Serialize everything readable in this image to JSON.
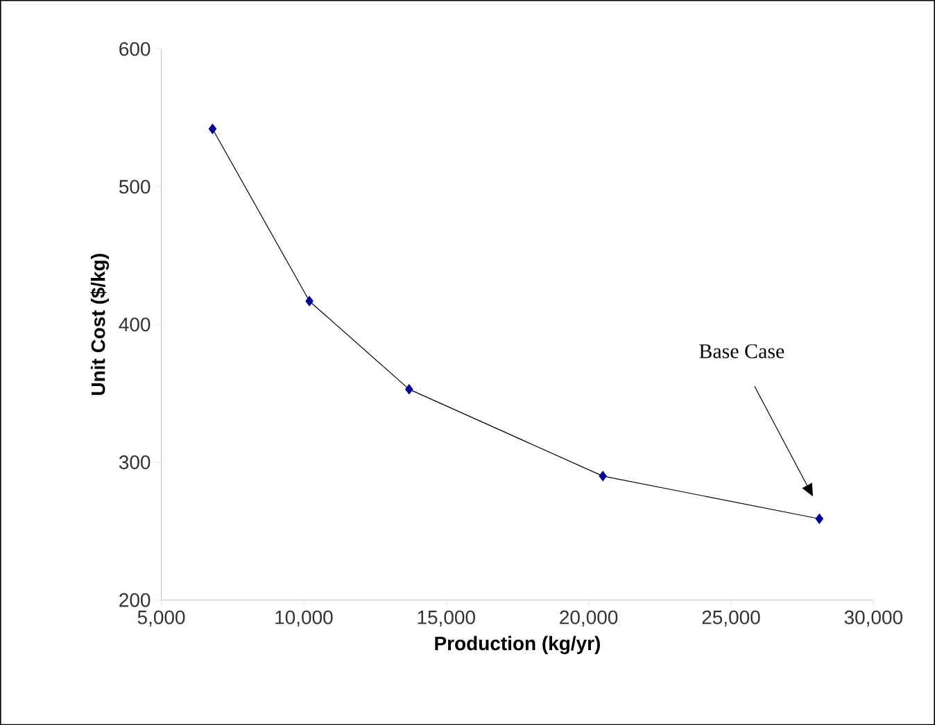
{
  "chart_data": {
    "type": "line",
    "xlabel": "Production (kg/yr)",
    "ylabel": "Unit Cost ($/kg)",
    "x": [
      6800,
      10200,
      13700,
      20500,
      28100
    ],
    "series": [
      {
        "color": "#000099",
        "values": [
          542,
          417,
          353,
          290,
          259
        ]
      }
    ],
    "xlim": [
      5000,
      30000
    ],
    "ylim": [
      200,
      600
    ],
    "xticks": [
      {
        "value": 5000,
        "label": "5,000"
      },
      {
        "value": 10000,
        "label": "10,000"
      },
      {
        "value": 15000,
        "label": "15,000"
      },
      {
        "value": 20000,
        "label": "20,000"
      },
      {
        "value": 25000,
        "label": "25,000"
      },
      {
        "value": 30000,
        "label": "30,000"
      }
    ],
    "yticks": [
      200,
      300,
      400,
      500,
      600
    ],
    "marker": "diamond",
    "line_style": "solid",
    "grid": false,
    "annotations": [
      "Base Case"
    ]
  }
}
